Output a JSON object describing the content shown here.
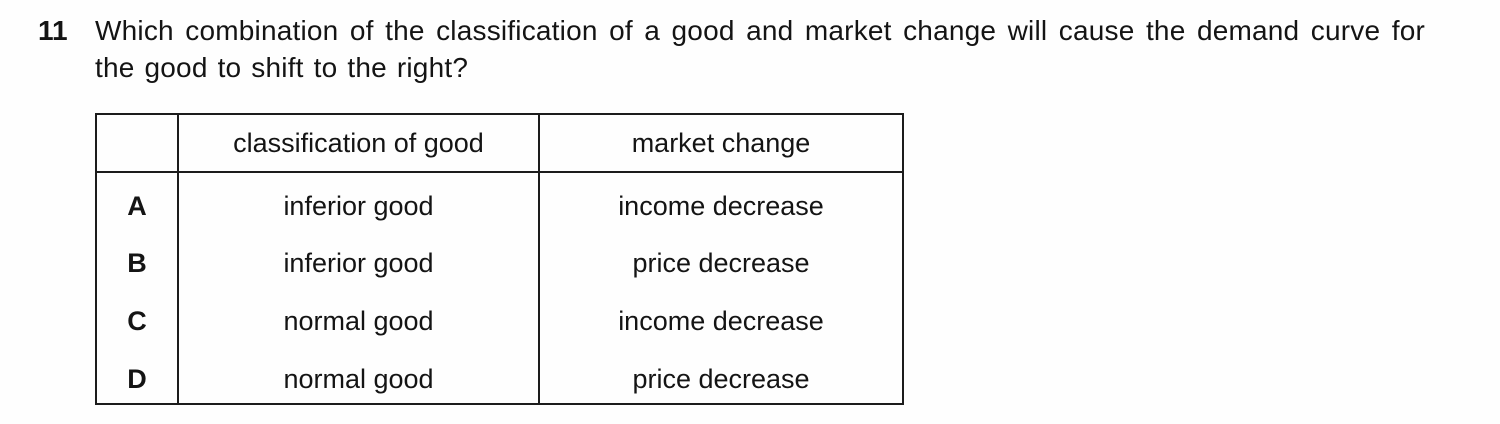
{
  "question": {
    "number": "11",
    "text": "Which combination of the classification of a good and market change will cause the demand curve for the good to shift to the right?"
  },
  "table": {
    "headers": {
      "option": "",
      "classification": "classification of good",
      "market_change": "market change"
    },
    "rows": [
      {
        "option": "A",
        "classification": "inferior good",
        "market_change": "income decrease"
      },
      {
        "option": "B",
        "classification": "inferior good",
        "market_change": "price decrease"
      },
      {
        "option": "C",
        "classification": "normal good",
        "market_change": "income decrease"
      },
      {
        "option": "D",
        "classification": "normal good",
        "market_change": "price decrease"
      }
    ]
  }
}
